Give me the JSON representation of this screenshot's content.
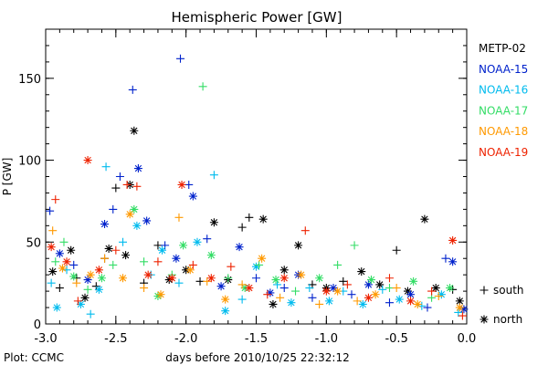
{
  "chart_data": {
    "type": "scatter",
    "title": "Hemispheric Power [GW]",
    "xlabel": "days before 2010/10/25 22:32:12",
    "ylabel": "P [GW]",
    "xlim": [
      -3.0,
      0.0
    ],
    "ylim": [
      0,
      180
    ],
    "x_ticks": [
      -3.0,
      -2.5,
      -2.0,
      -1.5,
      -1.0,
      -0.5,
      0.0
    ],
    "x_tick_labels": [
      "-3.0",
      "-2.5",
      "-2.0",
      "-1.5",
      "-1.0",
      "-0.5",
      "0.0"
    ],
    "y_ticks": [
      0,
      50,
      100,
      150
    ],
    "y_tick_labels": [
      "0",
      "50",
      "100",
      "150"
    ],
    "grid": false,
    "legend_position": "right",
    "marker_legend": [
      {
        "label": "south",
        "marker": "+"
      },
      {
        "label": "north",
        "marker": "*"
      }
    ],
    "footer": "Plot: CCMC",
    "series": [
      {
        "name": "METP-02",
        "color": "#000000",
        "points": [
          {
            "x": -2.95,
            "y": 32,
            "m": "*"
          },
          {
            "x": -2.9,
            "y": 22,
            "m": "+"
          },
          {
            "x": -2.82,
            "y": 45,
            "m": "*"
          },
          {
            "x": -2.78,
            "y": 28,
            "m": "+"
          },
          {
            "x": -2.72,
            "y": 16,
            "m": "*"
          },
          {
            "x": -2.64,
            "y": 23,
            "m": "+"
          },
          {
            "x": -2.58,
            "y": 40,
            "m": "+"
          },
          {
            "x": -2.55,
            "y": 46,
            "m": "*"
          },
          {
            "x": -2.5,
            "y": 83,
            "m": "+"
          },
          {
            "x": -2.43,
            "y": 42,
            "m": "*"
          },
          {
            "x": -2.4,
            "y": 85,
            "m": "*"
          },
          {
            "x": -2.37,
            "y": 118,
            "m": "*"
          },
          {
            "x": -2.3,
            "y": 25,
            "m": "+"
          },
          {
            "x": -2.2,
            "y": 48,
            "m": "+"
          },
          {
            "x": -2.12,
            "y": 27,
            "m": "*"
          },
          {
            "x": -2.0,
            "y": 33,
            "m": "*"
          },
          {
            "x": -1.9,
            "y": 26,
            "m": "+"
          },
          {
            "x": -1.8,
            "y": 62,
            "m": "*"
          },
          {
            "x": -1.7,
            "y": 27,
            "m": "*"
          },
          {
            "x": -1.6,
            "y": 59,
            "m": "+"
          },
          {
            "x": -1.55,
            "y": 65,
            "m": "+"
          },
          {
            "x": -1.45,
            "y": 64,
            "m": "*"
          },
          {
            "x": -1.38,
            "y": 12,
            "m": "*"
          },
          {
            "x": -1.3,
            "y": 33,
            "m": "*"
          },
          {
            "x": -1.2,
            "y": 48,
            "m": "*"
          },
          {
            "x": -1.1,
            "y": 24,
            "m": "+"
          },
          {
            "x": -1.0,
            "y": 22,
            "m": "*"
          },
          {
            "x": -0.88,
            "y": 26,
            "m": "+"
          },
          {
            "x": -0.75,
            "y": 32,
            "m": "*"
          },
          {
            "x": -0.62,
            "y": 24,
            "m": "*"
          },
          {
            "x": -0.5,
            "y": 45,
            "m": "+"
          },
          {
            "x": -0.42,
            "y": 20,
            "m": "*"
          },
          {
            "x": -0.3,
            "y": 64,
            "m": "*"
          },
          {
            "x": -0.22,
            "y": 22,
            "m": "*"
          },
          {
            "x": -0.1,
            "y": 21,
            "m": "+"
          },
          {
            "x": -0.05,
            "y": 14,
            "m": "*"
          }
        ]
      },
      {
        "name": "NOAA-15",
        "color": "#0022cc",
        "points": [
          {
            "x": -2.97,
            "y": 69,
            "m": "+"
          },
          {
            "x": -2.9,
            "y": 43,
            "m": "*"
          },
          {
            "x": -2.8,
            "y": 36,
            "m": "+"
          },
          {
            "x": -2.7,
            "y": 27,
            "m": "*"
          },
          {
            "x": -2.58,
            "y": 61,
            "m": "*"
          },
          {
            "x": -2.52,
            "y": 70,
            "m": "+"
          },
          {
            "x": -2.47,
            "y": 90,
            "m": "+"
          },
          {
            "x": -2.38,
            "y": 143,
            "m": "+"
          },
          {
            "x": -2.34,
            "y": 95,
            "m": "*"
          },
          {
            "x": -2.28,
            "y": 63,
            "m": "*"
          },
          {
            "x": -2.15,
            "y": 48,
            "m": "+"
          },
          {
            "x": -2.07,
            "y": 40,
            "m": "*"
          },
          {
            "x": -2.04,
            "y": 162,
            "m": "+"
          },
          {
            "x": -1.98,
            "y": 85,
            "m": "+"
          },
          {
            "x": -1.95,
            "y": 78,
            "m": "*"
          },
          {
            "x": -1.85,
            "y": 52,
            "m": "+"
          },
          {
            "x": -1.75,
            "y": 23,
            "m": "*"
          },
          {
            "x": -1.62,
            "y": 47,
            "m": "*"
          },
          {
            "x": -1.5,
            "y": 28,
            "m": "+"
          },
          {
            "x": -1.4,
            "y": 19,
            "m": "*"
          },
          {
            "x": -1.3,
            "y": 22,
            "m": "+"
          },
          {
            "x": -1.2,
            "y": 30,
            "m": "*"
          },
          {
            "x": -1.1,
            "y": 16,
            "m": "+"
          },
          {
            "x": -0.95,
            "y": 22,
            "m": "*"
          },
          {
            "x": -0.82,
            "y": 18,
            "m": "+"
          },
          {
            "x": -0.7,
            "y": 24,
            "m": "*"
          },
          {
            "x": -0.55,
            "y": 13,
            "m": "+"
          },
          {
            "x": -0.4,
            "y": 18,
            "m": "*"
          },
          {
            "x": -0.28,
            "y": 10,
            "m": "+"
          },
          {
            "x": -0.15,
            "y": 40,
            "m": "+"
          },
          {
            "x": -0.1,
            "y": 38,
            "m": "*"
          },
          {
            "x": -0.02,
            "y": 9,
            "m": "*"
          }
        ]
      },
      {
        "name": "NOAA-16",
        "color": "#00bbee",
        "points": [
          {
            "x": -2.96,
            "y": 25,
            "m": "+"
          },
          {
            "x": -2.92,
            "y": 10,
            "m": "*"
          },
          {
            "x": -2.85,
            "y": 33,
            "m": "+"
          },
          {
            "x": -2.75,
            "y": 12,
            "m": "*"
          },
          {
            "x": -2.68,
            "y": 6,
            "m": "+"
          },
          {
            "x": -2.62,
            "y": 21,
            "m": "*"
          },
          {
            "x": -2.57,
            "y": 96,
            "m": "+"
          },
          {
            "x": -2.45,
            "y": 50,
            "m": "+"
          },
          {
            "x": -2.35,
            "y": 60,
            "m": "*"
          },
          {
            "x": -2.25,
            "y": 30,
            "m": "+"
          },
          {
            "x": -2.17,
            "y": 45,
            "m": "*"
          },
          {
            "x": -2.05,
            "y": 25,
            "m": "+"
          },
          {
            "x": -1.92,
            "y": 50,
            "m": "*"
          },
          {
            "x": -1.8,
            "y": 91,
            "m": "+"
          },
          {
            "x": -1.72,
            "y": 8,
            "m": "*"
          },
          {
            "x": -1.6,
            "y": 15,
            "m": "+"
          },
          {
            "x": -1.5,
            "y": 35,
            "m": "*"
          },
          {
            "x": -1.35,
            "y": 24,
            "m": "+"
          },
          {
            "x": -1.25,
            "y": 13,
            "m": "*"
          },
          {
            "x": -1.12,
            "y": 22,
            "m": "+"
          },
          {
            "x": -0.98,
            "y": 14,
            "m": "*"
          },
          {
            "x": -0.88,
            "y": 20,
            "m": "+"
          },
          {
            "x": -0.74,
            "y": 12,
            "m": "*"
          },
          {
            "x": -0.6,
            "y": 21,
            "m": "+"
          },
          {
            "x": -0.48,
            "y": 15,
            "m": "*"
          },
          {
            "x": -0.32,
            "y": 11,
            "m": "+"
          },
          {
            "x": -0.18,
            "y": 18,
            "m": "*"
          },
          {
            "x": -0.06,
            "y": 7,
            "m": "+"
          }
        ]
      },
      {
        "name": "NOAA-17",
        "color": "#33dd66",
        "points": [
          {
            "x": -2.93,
            "y": 38,
            "m": "+"
          },
          {
            "x": -2.87,
            "y": 50,
            "m": "+"
          },
          {
            "x": -2.8,
            "y": 29,
            "m": "*"
          },
          {
            "x": -2.7,
            "y": 21,
            "m": "+"
          },
          {
            "x": -2.6,
            "y": 28,
            "m": "*"
          },
          {
            "x": -2.52,
            "y": 36,
            "m": "+"
          },
          {
            "x": -2.37,
            "y": 70,
            "m": "*"
          },
          {
            "x": -2.3,
            "y": 38,
            "m": "+"
          },
          {
            "x": -2.2,
            "y": 17,
            "m": "*"
          },
          {
            "x": -2.1,
            "y": 30,
            "m": "+"
          },
          {
            "x": -2.02,
            "y": 48,
            "m": "*"
          },
          {
            "x": -1.88,
            "y": 145,
            "m": "+"
          },
          {
            "x": -1.82,
            "y": 42,
            "m": "*"
          },
          {
            "x": -1.7,
            "y": 28,
            "m": "+"
          },
          {
            "x": -1.58,
            "y": 22,
            "m": "*"
          },
          {
            "x": -1.48,
            "y": 36,
            "m": "+"
          },
          {
            "x": -1.36,
            "y": 27,
            "m": "*"
          },
          {
            "x": -1.22,
            "y": 20,
            "m": "+"
          },
          {
            "x": -1.05,
            "y": 28,
            "m": "*"
          },
          {
            "x": -0.92,
            "y": 36,
            "m": "+"
          },
          {
            "x": -0.8,
            "y": 48,
            "m": "+"
          },
          {
            "x": -0.68,
            "y": 27,
            "m": "*"
          },
          {
            "x": -0.55,
            "y": 22,
            "m": "+"
          },
          {
            "x": -0.38,
            "y": 26,
            "m": "*"
          },
          {
            "x": -0.25,
            "y": 16,
            "m": "+"
          },
          {
            "x": -0.12,
            "y": 22,
            "m": "*"
          }
        ]
      },
      {
        "name": "NOAA-18",
        "color": "#ff9900",
        "points": [
          {
            "x": -2.95,
            "y": 57,
            "m": "+"
          },
          {
            "x": -2.88,
            "y": 34,
            "m": "*"
          },
          {
            "x": -2.78,
            "y": 25,
            "m": "+"
          },
          {
            "x": -2.68,
            "y": 30,
            "m": "*"
          },
          {
            "x": -2.58,
            "y": 40,
            "m": "+"
          },
          {
            "x": -2.45,
            "y": 28,
            "m": "*"
          },
          {
            "x": -2.4,
            "y": 67,
            "m": "*"
          },
          {
            "x": -2.3,
            "y": 22,
            "m": "+"
          },
          {
            "x": -2.18,
            "y": 18,
            "m": "*"
          },
          {
            "x": -2.05,
            "y": 65,
            "m": "+"
          },
          {
            "x": -1.97,
            "y": 33,
            "m": "*"
          },
          {
            "x": -1.85,
            "y": 26,
            "m": "+"
          },
          {
            "x": -1.72,
            "y": 15,
            "m": "*"
          },
          {
            "x": -1.6,
            "y": 24,
            "m": "+"
          },
          {
            "x": -1.46,
            "y": 40,
            "m": "*"
          },
          {
            "x": -1.33,
            "y": 16,
            "m": "+"
          },
          {
            "x": -1.18,
            "y": 30,
            "m": "*"
          },
          {
            "x": -1.05,
            "y": 12,
            "m": "+"
          },
          {
            "x": -0.92,
            "y": 20,
            "m": "*"
          },
          {
            "x": -0.78,
            "y": 14,
            "m": "+"
          },
          {
            "x": -0.65,
            "y": 18,
            "m": "*"
          },
          {
            "x": -0.5,
            "y": 22,
            "m": "+"
          },
          {
            "x": -0.35,
            "y": 12,
            "m": "*"
          },
          {
            "x": -0.2,
            "y": 17,
            "m": "+"
          },
          {
            "x": -0.05,
            "y": 10,
            "m": "*"
          }
        ]
      },
      {
        "name": "NOAA-19",
        "color": "#ee2200",
        "points": [
          {
            "x": -2.96,
            "y": 47,
            "m": "*"
          },
          {
            "x": -2.93,
            "y": 76,
            "m": "+"
          },
          {
            "x": -2.85,
            "y": 38,
            "m": "*"
          },
          {
            "x": -2.77,
            "y": 14,
            "m": "+"
          },
          {
            "x": -2.7,
            "y": 100,
            "m": "*"
          },
          {
            "x": -2.62,
            "y": 33,
            "m": "*"
          },
          {
            "x": -2.5,
            "y": 45,
            "m": "+"
          },
          {
            "x": -2.42,
            "y": 85,
            "m": "+"
          },
          {
            "x": -2.35,
            "y": 84,
            "m": "+"
          },
          {
            "x": -2.27,
            "y": 30,
            "m": "*"
          },
          {
            "x": -2.2,
            "y": 38,
            "m": "+"
          },
          {
            "x": -2.1,
            "y": 28,
            "m": "*"
          },
          {
            "x": -2.03,
            "y": 85,
            "m": "*"
          },
          {
            "x": -1.95,
            "y": 36,
            "m": "+"
          },
          {
            "x": -1.82,
            "y": 28,
            "m": "*"
          },
          {
            "x": -1.68,
            "y": 35,
            "m": "+"
          },
          {
            "x": -1.55,
            "y": 22,
            "m": "*"
          },
          {
            "x": -1.42,
            "y": 18,
            "m": "+"
          },
          {
            "x": -1.3,
            "y": 28,
            "m": "*"
          },
          {
            "x": -1.15,
            "y": 57,
            "m": "+"
          },
          {
            "x": -1.0,
            "y": 20,
            "m": "*"
          },
          {
            "x": -0.85,
            "y": 24,
            "m": "+"
          },
          {
            "x": -0.7,
            "y": 16,
            "m": "*"
          },
          {
            "x": -0.55,
            "y": 28,
            "m": "+"
          },
          {
            "x": -0.4,
            "y": 14,
            "m": "*"
          },
          {
            "x": -0.25,
            "y": 20,
            "m": "+"
          },
          {
            "x": -0.1,
            "y": 51,
            "m": "*"
          },
          {
            "x": -0.03,
            "y": 5,
            "m": "+"
          }
        ]
      }
    ]
  }
}
